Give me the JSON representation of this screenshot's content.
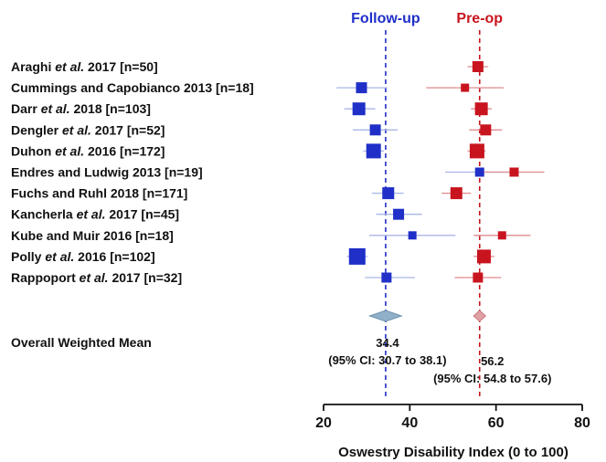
{
  "chart_data": {
    "type": "forest",
    "xlabel": "Oswestry Disability Index (0 to 100)",
    "xlim": [
      20,
      80
    ],
    "xticks": [
      20,
      40,
      60,
      80
    ],
    "grid": false,
    "series": [
      {
        "name": "Follow-up",
        "color": "#1f2fc8",
        "ci_color": "#a9b6e6",
        "reference_line": 34.4,
        "points": [
          {
            "study": "Araghi",
            "x": null,
            "lo": null,
            "hi": null,
            "size": null
          },
          {
            "study": "Cummings and Capobianco 2013",
            "x": 28.8,
            "lo": 23.0,
            "hi": 34.8,
            "size": 12
          },
          {
            "study": "Darr",
            "x": 28.2,
            "lo": 24.8,
            "hi": 32.0,
            "size": 14
          },
          {
            "study": "Dengler",
            "x": 32.0,
            "lo": 26.8,
            "hi": 37.2,
            "size": 12
          },
          {
            "study": "Duhon",
            "x": 31.6,
            "lo": 29.2,
            "hi": 34.0,
            "size": 16
          },
          {
            "study": "Endres and Ludwig 2013",
            "x": 56.2,
            "lo": 48.2,
            "hi": 64.0,
            "size": 10
          },
          {
            "study": "Fuchs and Ruhl 2018",
            "x": 35.0,
            "lo": 31.2,
            "hi": 38.6,
            "size": 13
          },
          {
            "study": "Kancherla",
            "x": 37.4,
            "lo": 32.2,
            "hi": 42.8,
            "size": 12
          },
          {
            "study": "Kube and Muir 2016",
            "x": 40.6,
            "lo": 30.6,
            "hi": 50.6,
            "size": 9
          },
          {
            "study": "Polly",
            "x": 27.8,
            "lo": 25.4,
            "hi": 30.2,
            "size": 18
          },
          {
            "study": "Rappoport",
            "x": 34.6,
            "lo": 29.6,
            "hi": 41.2,
            "size": 11
          }
        ],
        "overall": {
          "x": 34.4,
          "lo": 30.7,
          "hi": 38.1,
          "label": "34.4",
          "ci_label": "(95% CI: 30.7 to 38.1)"
        }
      },
      {
        "name": "Pre-op",
        "color": "#c8141e",
        "ci_color": "#e08a8e",
        "reference_line": 56.2,
        "points": [
          {
            "study": "Araghi",
            "x": 55.8,
            "lo": 53.4,
            "hi": 58.2,
            "size": 12
          },
          {
            "study": "Cummings and Capobianco 2013",
            "x": 52.8,
            "lo": 43.8,
            "hi": 61.8,
            "size": 9
          },
          {
            "study": "Darr",
            "x": 56.6,
            "lo": 54.2,
            "hi": 59.0,
            "size": 14
          },
          {
            "study": "Dengler",
            "x": 57.6,
            "lo": 53.8,
            "hi": 61.4,
            "size": 12
          },
          {
            "study": "Duhon",
            "x": 55.6,
            "lo": 53.4,
            "hi": 57.6,
            "size": 16
          },
          {
            "study": "Endres and Ludwig 2013",
            "x": 64.2,
            "lo": 57.2,
            "hi": 71.2,
            "size": 10
          },
          {
            "study": "Fuchs and Ruhl 2018",
            "x": 50.8,
            "lo": 47.4,
            "hi": 54.2,
            "size": 13
          },
          {
            "study": "Kancherla",
            "x": null,
            "lo": null,
            "hi": null,
            "size": null
          },
          {
            "study": "Kube and Muir 2016",
            "x": 61.4,
            "lo": 54.8,
            "hi": 68.0,
            "size": 9
          },
          {
            "study": "Polly",
            "x": 57.2,
            "lo": 54.8,
            "hi": 59.6,
            "size": 15
          },
          {
            "study": "Rappoport",
            "x": 55.8,
            "lo": 50.4,
            "hi": 61.2,
            "size": 11
          }
        ],
        "overall": {
          "x": 56.2,
          "lo": 54.8,
          "hi": 57.6,
          "label": "56.2",
          "ci_label": "(95% CI: 54.8 to 57.6)"
        }
      }
    ],
    "studies": [
      {
        "name": "Araghi ",
        "etal": "et al.",
        "rest": " 2017 [n=50]"
      },
      {
        "name": "Cummings and Capobianco 2013 [n=18]",
        "etal": "",
        "rest": ""
      },
      {
        "name": "Darr ",
        "etal": "et al.",
        "rest": " 2018 [n=103]"
      },
      {
        "name": "Dengler ",
        "etal": "et al.",
        "rest": " 2017 [n=52]"
      },
      {
        "name": "Duhon ",
        "etal": "et al.",
        "rest": " 2016 [n=172]"
      },
      {
        "name": "Endres and Ludwig 2013 [n=19]",
        "etal": "",
        "rest": ""
      },
      {
        "name": "Fuchs and Ruhl 2018 [n=171]",
        "etal": "",
        "rest": ""
      },
      {
        "name": "Kancherla ",
        "etal": "et al.",
        "rest": " 2017 [n=45]"
      },
      {
        "name": "Kube and Muir 2016 [n=18]",
        "etal": "",
        "rest": ""
      },
      {
        "name": "Polly ",
        "etal": "et al.",
        "rest": " 2016 [n=102]"
      },
      {
        "name": "Rappoport ",
        "etal": "et al.",
        "rest": " 2017 [n=32]"
      }
    ],
    "overall_label": "Overall Weighted Mean"
  }
}
